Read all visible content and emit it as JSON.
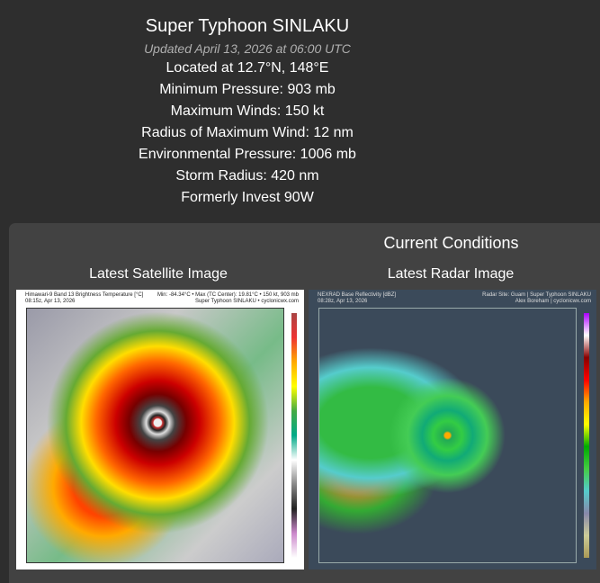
{
  "storm": {
    "title": "Super Typhoon SINLAKU",
    "updated": "Updated April 13, 2026 at 06:00 UTC",
    "location": "Located at 12.7°N, 148°E",
    "min_pressure": "Minimum Pressure: 903 mb",
    "max_winds": "Maximum Winds: 150 kt",
    "rmw": "Radius of Maximum Wind: 12 nm",
    "env_pressure": "Environmental Pressure: 1006 mb",
    "storm_radius": "Storm Radius: 420 nm",
    "formerly": "Formerly Invest 90W"
  },
  "conditions": {
    "heading": "Current Conditions",
    "satellite": {
      "caption": "Latest Satellite Image",
      "title": "Himawari-9 Band 13 Brightness Temperature [°C]",
      "time": "08:15z, Apr 13, 2026",
      "stats": "Min: -84.34°C • Max (TC Center): 19.81°C • 150 kt, 903 mb",
      "credit": "Super Typhoon SINLAKU • cyclonicwx.com"
    },
    "radar": {
      "caption": "Latest Radar Image",
      "title": "NEXRAD Base Reflectivity [dBZ]",
      "time": "08:28z, Apr 13, 2026",
      "site": "Radar Site: Guam | Super Typhoon SINLAKU",
      "credit": "Alex Boreham | cyclonicwx.com"
    }
  }
}
